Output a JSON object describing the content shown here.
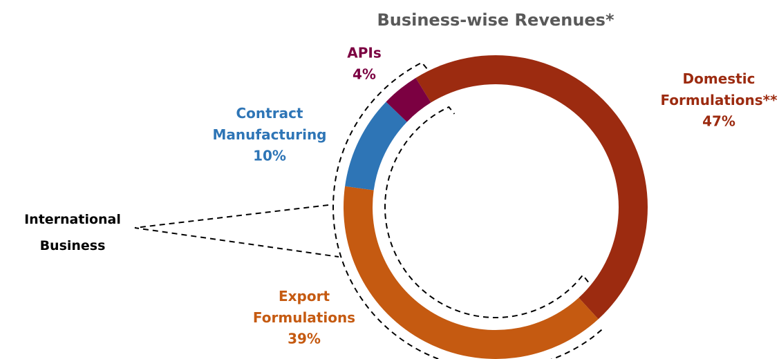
{
  "chart_data": {
    "type": "donut",
    "title": "Business-wise Revenues*",
    "categories": [
      "Domestic Formulations**",
      "Export Formulations",
      "Contract Manufacturing",
      "APIs"
    ],
    "values": [
      47,
      39,
      10,
      4
    ],
    "value_labels": [
      "47%",
      "39%",
      "10%",
      "4%"
    ],
    "colors": [
      "#9c2b10",
      "#c55a11",
      "#2e75b6",
      "#7b0041"
    ],
    "annotation": "International Business"
  }
}
